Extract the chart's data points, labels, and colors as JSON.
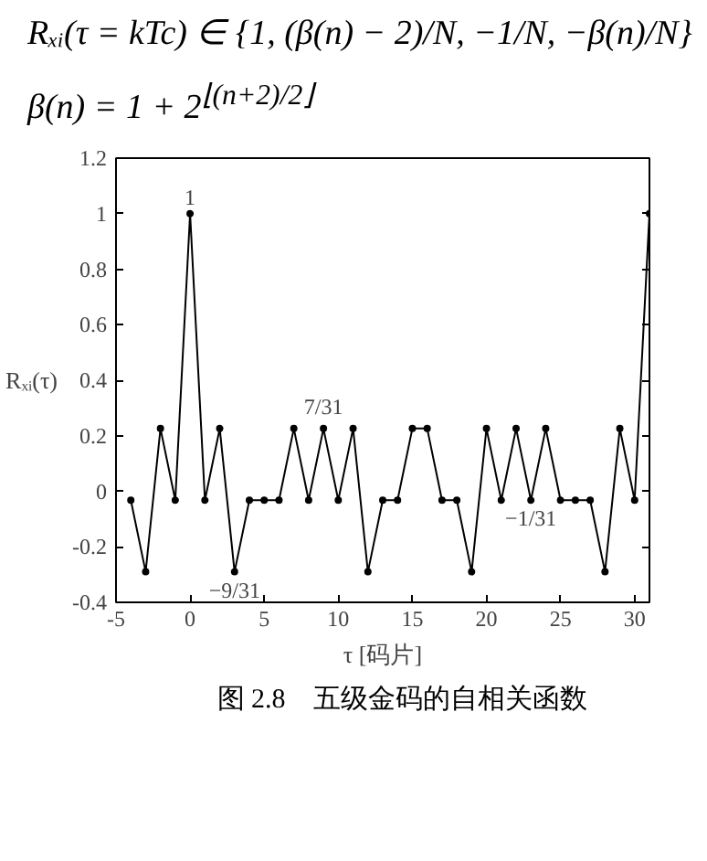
{
  "chart_data": {
    "type": "line",
    "xlabel": "τ [码片]",
    "ylabel": "Rₓᵢ(τ)",
    "x": [
      -4,
      -3,
      -2,
      -1,
      0,
      1,
      2,
      3,
      4,
      5,
      6,
      7,
      8,
      9,
      10,
      11,
      12,
      13,
      14,
      15,
      16,
      17,
      18,
      19,
      20,
      21,
      22,
      23,
      24,
      25,
      26,
      27,
      28,
      29,
      30,
      31
    ],
    "series": [
      {
        "color": "#000000",
        "values": [
          -0.032,
          -0.29,
          0.226,
          -0.032,
          1,
          -0.032,
          0.226,
          -0.29,
          -0.032,
          -0.032,
          -0.032,
          0.226,
          -0.032,
          0.226,
          -0.032,
          0.226,
          -0.29,
          -0.032,
          -0.032,
          0.226,
          0.226,
          -0.032,
          -0.032,
          -0.29,
          0.226,
          -0.032,
          0.226,
          -0.032,
          0.226,
          -0.032,
          -0.032,
          -0.032,
          -0.29,
          0.226,
          -0.032,
          1
        ]
      }
    ],
    "xlim": [
      -5,
      31
    ],
    "ylim": [
      -0.4,
      1.2
    ],
    "xticks": [
      -5,
      0,
      5,
      10,
      15,
      20,
      25,
      30
    ],
    "yticks": [
      -0.4,
      -0.2,
      0,
      0.2,
      0.4,
      0.6,
      0.8,
      1,
      1.2
    ],
    "marker": "circle",
    "line_style": "solid",
    "grid": false,
    "annotations": [
      "Rₓᵢ(τ = kTc) ∈ {1, (β(n) − 2)/N, −1/N, −β(n)/N}",
      "β(n) = 1 + 2$^{⌊(n+2)/2⌋}$",
      {
        "text": "1",
        "x": 0,
        "y": 1
      },
      {
        "text": "7/31",
        "x": 9,
        "y": 0.226
      },
      {
        "text": "−9/31",
        "x": 3,
        "y": -0.29
      },
      {
        "text": "−1/31",
        "x": 23,
        "y": -0.032
      },
      "图 2.8　五级金码的自相关函数"
    ]
  }
}
